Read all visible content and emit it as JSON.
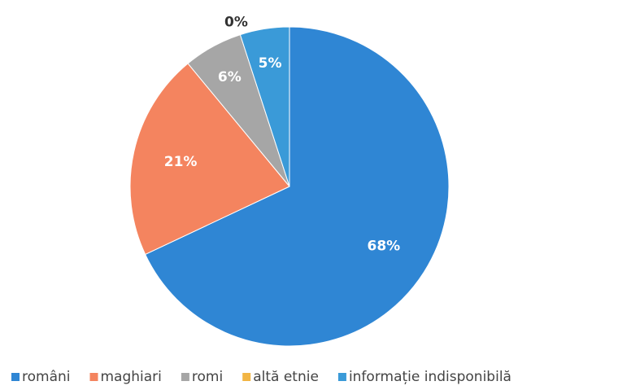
{
  "chart_data": {
    "type": "pie",
    "categories": [
      "români",
      "maghiari",
      "romi",
      "altă etnie",
      "informație indisponibilă"
    ],
    "values": [
      68,
      21,
      6,
      0,
      5
    ],
    "value_labels": [
      "68%",
      "21%",
      "6%",
      "0%",
      "5%"
    ],
    "colors": [
      "#2f86d4",
      "#f4845f",
      "#a6a6a6",
      "#f2b544",
      "#3a9ad8"
    ],
    "legend": "bottom"
  }
}
